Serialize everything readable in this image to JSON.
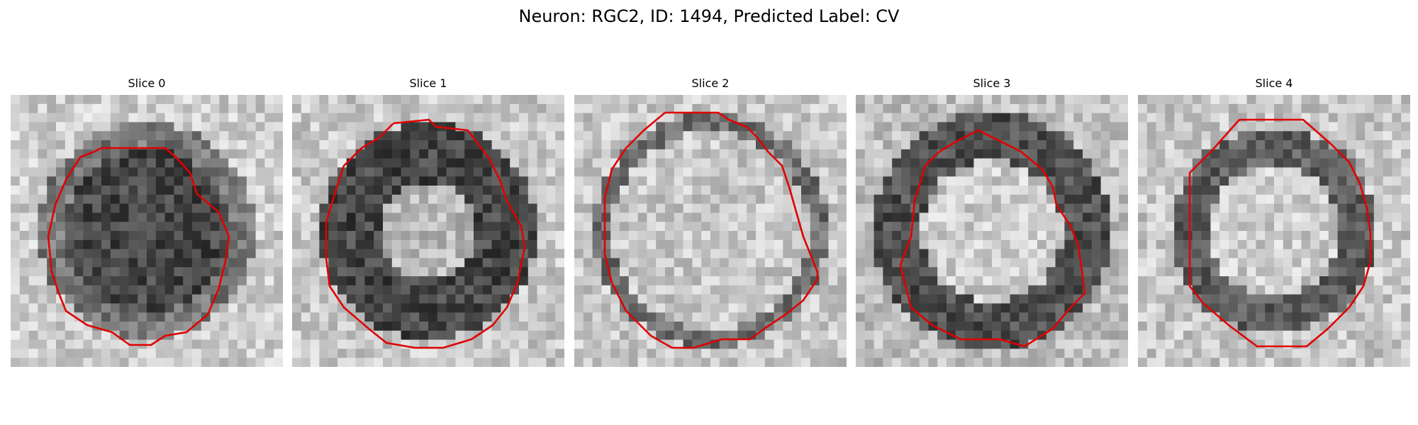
{
  "figure": {
    "title": "Neuron: RGC2, ID: 1494, Predicted Label: CV"
  },
  "panels": [
    {
      "title": "Slice 0",
      "texture": "dark-filled-blob",
      "contour_color": "#e00000"
    },
    {
      "title": "Slice 1",
      "texture": "dark-ring-bright-center",
      "contour_color": "#e00000"
    },
    {
      "title": "Slice 2",
      "texture": "thin-ring-bright-center",
      "contour_color": "#e00000"
    },
    {
      "title": "Slice 3",
      "texture": "thick-ring-bright-center",
      "contour_color": "#e00000"
    },
    {
      "title": "Slice 4",
      "texture": "octagonal-ring",
      "contour_color": "#e00000"
    }
  ]
}
